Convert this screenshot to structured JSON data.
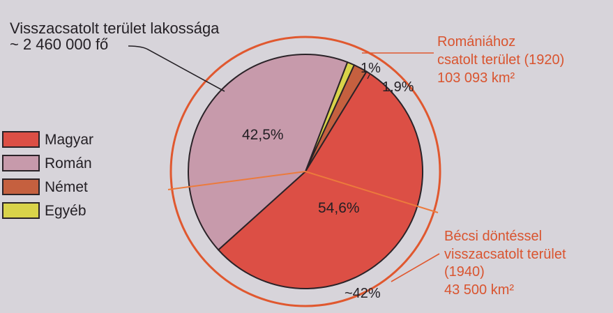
{
  "chart_data": {
    "type": "pie",
    "title": "",
    "population_label": {
      "line1": "Visszacsatolt terület lakossága",
      "line2": "~ 2 460 000 fő"
    },
    "series": [
      {
        "name": "Magyar",
        "value": 54.6,
        "label": "54,6%",
        "color": "#dc4f45"
      },
      {
        "name": "Román",
        "value": 42.5,
        "label": "42,5%",
        "color": "#c79aab"
      },
      {
        "name": "Német",
        "value": 1.9,
        "label": "1,9%",
        "color": "#c5603f"
      },
      {
        "name": "Egyéb",
        "value": 1.0,
        "label": "1%",
        "color": "#d9d34a"
      }
    ],
    "legend": {
      "placement": "left",
      "items": [
        "Magyar",
        "Román",
        "Német",
        "Egyéb"
      ]
    },
    "annotations": {
      "outer_ring": {
        "line1": "Romániához",
        "line2": "csatolt terület (1920)",
        "line3": "103 093 km²"
      },
      "inner_area": {
        "line1": "Bécsi döntéssel",
        "line2": "visszacsatolt terület",
        "line3": "(1940)",
        "line4": "43 500 km²"
      },
      "inner_area_share": "~42%"
    },
    "colors": {
      "accent_orange": "#e0582f",
      "outline": "#2a2328",
      "background": "#d7d4da"
    }
  }
}
